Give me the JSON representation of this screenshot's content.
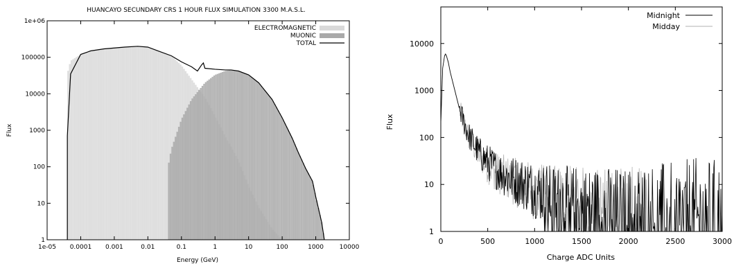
{
  "chart_data": [
    {
      "type": "bar",
      "title": "HUANCAYO SECUNDARY CRS 1 HOUR FLUX SIMULATION 3300 M.A.S.L.",
      "xlabel": "Energy (GeV)",
      "ylabel": "Flux",
      "x_scale": "log",
      "y_scale": "log",
      "xlim": [
        1e-05,
        10000
      ],
      "ylim": [
        1,
        1000000
      ],
      "x_ticks": [
        "1e-05",
        "0.0001",
        "0.001",
        "0.01",
        "0.1",
        "1",
        "10",
        "100",
        "1000",
        "10000"
      ],
      "y_ticks": [
        "1",
        "10",
        "100",
        "1000",
        "10000",
        "100000",
        "1e+06"
      ],
      "legend_position": "top-right",
      "series": [
        {
          "name": "ELECTROMAGNETIC",
          "color": "#d9d9d9",
          "x": [
            4e-05,
            5e-05,
            0.0001,
            0.0002,
            0.0005,
            0.001,
            0.002,
            0.005,
            0.01,
            0.02,
            0.05,
            0.1,
            0.2,
            0.5,
            1,
            2,
            5,
            10,
            20,
            50,
            100
          ],
          "values": [
            35000,
            80000,
            120000,
            150000,
            170000,
            180000,
            190000,
            200000,
            190000,
            150000,
            110000,
            60000,
            25000,
            8000,
            2500,
            700,
            150,
            30,
            8,
            2,
            1
          ]
        },
        {
          "name": "MUONIC",
          "color": "#a9a9a9",
          "x": [
            0.04,
            0.05,
            0.1,
            0.2,
            0.5,
            1,
            2,
            3,
            5,
            10,
            20,
            50,
            100,
            200,
            300,
            500,
            800,
            1000,
            1500,
            1800
          ],
          "values": [
            100,
            300,
            2000,
            7000,
            20000,
            33000,
            42000,
            45000,
            42000,
            33000,
            20000,
            7000,
            2200,
            600,
            250,
            90,
            40,
            15,
            3,
            1
          ]
        },
        {
          "name": "TOTAL",
          "color": "#000000",
          "x": [
            4e-05,
            5e-05,
            0.0001,
            0.0002,
            0.0005,
            0.001,
            0.002,
            0.005,
            0.01,
            0.02,
            0.05,
            0.1,
            0.2,
            0.3,
            0.4,
            0.45,
            0.5,
            1,
            2,
            3,
            5,
            10,
            20,
            50,
            100,
            200,
            300,
            500,
            800,
            1000,
            1500,
            1800
          ],
          "values": [
            700,
            35000,
            120000,
            150000,
            170000,
            180000,
            190000,
            200000,
            190000,
            150000,
            110000,
            75000,
            55000,
            42000,
            62000,
            70000,
            50000,
            47000,
            45000,
            45000,
            42000,
            33000,
            20000,
            7000,
            2200,
            600,
            250,
            90,
            40,
            15,
            3,
            1
          ]
        }
      ]
    },
    {
      "type": "line",
      "title": "",
      "xlabel": "Charge ADC Units",
      "ylabel": "Flux",
      "y_scale": "log",
      "xlim": [
        0,
        3000
      ],
      "ylim": [
        1,
        60000
      ],
      "x_ticks": [
        "0",
        "500",
        "1000",
        "1500",
        "2000",
        "2500",
        "3000"
      ],
      "y_ticks": [
        "1",
        "10",
        "100",
        "1000",
        "10000"
      ],
      "legend_position": "top-right",
      "series": [
        {
          "name": "Midnight",
          "color": "#000000",
          "x": [
            0,
            20,
            40,
            50,
            60,
            80,
            100,
            150,
            200,
            250,
            300,
            400,
            500,
            600,
            700,
            800,
            900,
            1000,
            1200,
            1400,
            1600,
            1800,
            2000,
            2200,
            2500,
            2800,
            3000
          ],
          "values": [
            200,
            3000,
            5500,
            6000,
            5500,
            4000,
            2500,
            1000,
            400,
            200,
            110,
            50,
            30,
            20,
            15,
            12,
            10,
            8,
            5,
            4,
            3,
            2.5,
            2,
            2,
            1.5,
            1.5,
            1.5
          ]
        },
        {
          "name": "Midday",
          "color": "#b0b0b0",
          "x": [
            0,
            20,
            40,
            50,
            60,
            80,
            100,
            150,
            200,
            250,
            300,
            400,
            500,
            600,
            700,
            800,
            900,
            1000,
            1200,
            1400,
            1600,
            1800,
            2000,
            2200
          ],
          "values": [
            200,
            3000,
            5300,
            5800,
            5300,
            3800,
            2400,
            950,
            380,
            190,
            100,
            45,
            25,
            18,
            14,
            11,
            9,
            7,
            5,
            4,
            3,
            2.5,
            2,
            1.5
          ]
        }
      ]
    }
  ]
}
